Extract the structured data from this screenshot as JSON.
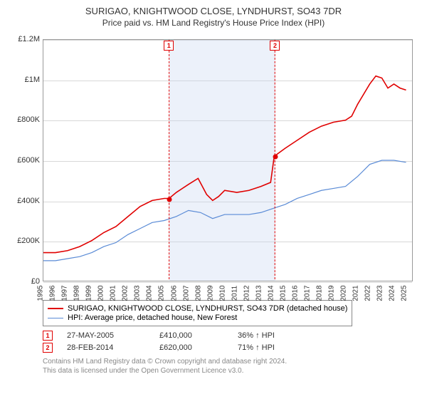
{
  "title": "SURIGAO, KNIGHTWOOD CLOSE, LYNDHURST, SO43 7DR",
  "subtitle": "Price paid vs. HM Land Registry's House Price Index (HPI)",
  "chart": {
    "type": "line",
    "background_color": "#ffffff",
    "grid_color": "#d8d8d8",
    "border_color": "#999999",
    "shade_color": "rgba(200,216,240,0.35)",
    "xlim": [
      1995,
      2025.5
    ],
    "ylim": [
      0,
      1200000
    ],
    "yticks": [
      {
        "v": 0,
        "label": "£0"
      },
      {
        "v": 200000,
        "label": "£200K"
      },
      {
        "v": 400000,
        "label": "£400K"
      },
      {
        "v": 600000,
        "label": "£600K"
      },
      {
        "v": 800000,
        "label": "£800K"
      },
      {
        "v": 1000000,
        "label": "£1M"
      },
      {
        "v": 1200000,
        "label": "£1.2M"
      }
    ],
    "xticks": [
      1995,
      1996,
      1997,
      1998,
      1999,
      2000,
      2001,
      2002,
      2003,
      2004,
      2005,
      2006,
      2007,
      2008,
      2009,
      2010,
      2011,
      2012,
      2013,
      2014,
      2015,
      2016,
      2017,
      2018,
      2019,
      2020,
      2021,
      2022,
      2023,
      2024,
      2025
    ],
    "shade_from": 2005.4,
    "shade_to": 2014.15,
    "series": [
      {
        "name": "property",
        "color": "#e00000",
        "width": 1.6,
        "points": [
          [
            1995,
            140000
          ],
          [
            1996,
            140000
          ],
          [
            1997,
            150000
          ],
          [
            1998,
            170000
          ],
          [
            1999,
            200000
          ],
          [
            2000,
            240000
          ],
          [
            2001,
            270000
          ],
          [
            2002,
            320000
          ],
          [
            2003,
            370000
          ],
          [
            2004,
            400000
          ],
          [
            2005,
            410000
          ],
          [
            2005.4,
            410000
          ],
          [
            2006,
            440000
          ],
          [
            2007,
            480000
          ],
          [
            2007.8,
            510000
          ],
          [
            2008.5,
            430000
          ],
          [
            2009,
            400000
          ],
          [
            2009.5,
            420000
          ],
          [
            2010,
            450000
          ],
          [
            2011,
            440000
          ],
          [
            2012,
            450000
          ],
          [
            2013,
            470000
          ],
          [
            2013.8,
            490000
          ],
          [
            2014.1,
            620000
          ],
          [
            2015,
            660000
          ],
          [
            2016,
            700000
          ],
          [
            2017,
            740000
          ],
          [
            2018,
            770000
          ],
          [
            2019,
            790000
          ],
          [
            2020,
            800000
          ],
          [
            2020.5,
            820000
          ],
          [
            2021,
            880000
          ],
          [
            2022,
            980000
          ],
          [
            2022.5,
            1020000
          ],
          [
            2023,
            1010000
          ],
          [
            2023.5,
            960000
          ],
          [
            2024,
            980000
          ],
          [
            2024.5,
            960000
          ],
          [
            2025,
            950000
          ]
        ]
      },
      {
        "name": "hpi",
        "color": "#5a8bd6",
        "width": 1.2,
        "points": [
          [
            1995,
            100000
          ],
          [
            1996,
            100000
          ],
          [
            1997,
            110000
          ],
          [
            1998,
            120000
          ],
          [
            1999,
            140000
          ],
          [
            2000,
            170000
          ],
          [
            2001,
            190000
          ],
          [
            2002,
            230000
          ],
          [
            2003,
            260000
          ],
          [
            2004,
            290000
          ],
          [
            2005,
            300000
          ],
          [
            2006,
            320000
          ],
          [
            2007,
            350000
          ],
          [
            2008,
            340000
          ],
          [
            2009,
            310000
          ],
          [
            2010,
            330000
          ],
          [
            2011,
            330000
          ],
          [
            2012,
            330000
          ],
          [
            2013,
            340000
          ],
          [
            2014,
            360000
          ],
          [
            2015,
            380000
          ],
          [
            2016,
            410000
          ],
          [
            2017,
            430000
          ],
          [
            2018,
            450000
          ],
          [
            2019,
            460000
          ],
          [
            2020,
            470000
          ],
          [
            2021,
            520000
          ],
          [
            2022,
            580000
          ],
          [
            2023,
            600000
          ],
          [
            2024,
            600000
          ],
          [
            2025,
            590000
          ]
        ]
      }
    ],
    "sale_points": [
      {
        "n": 1,
        "x": 2005.4,
        "y": 410000
      },
      {
        "n": 2,
        "x": 2014.15,
        "y": 620000
      }
    ]
  },
  "legend": {
    "items": [
      {
        "color": "#e00000",
        "width": 2,
        "label": "SURIGAO, KNIGHTWOOD CLOSE, LYNDHURST, SO43 7DR (detached house)"
      },
      {
        "color": "#5a8bd6",
        "width": 1,
        "label": "HPI: Average price, detached house, New Forest"
      }
    ]
  },
  "sales": [
    {
      "n": "1",
      "date": "27-MAY-2005",
      "price": "£410,000",
      "delta": "36% ↑ HPI"
    },
    {
      "n": "2",
      "date": "28-FEB-2014",
      "price": "£620,000",
      "delta": "71% ↑ HPI"
    }
  ],
  "footnote_line1": "Contains HM Land Registry data © Crown copyright and database right 2024.",
  "footnote_line2": "This data is licensed under the Open Government Licence v3.0."
}
